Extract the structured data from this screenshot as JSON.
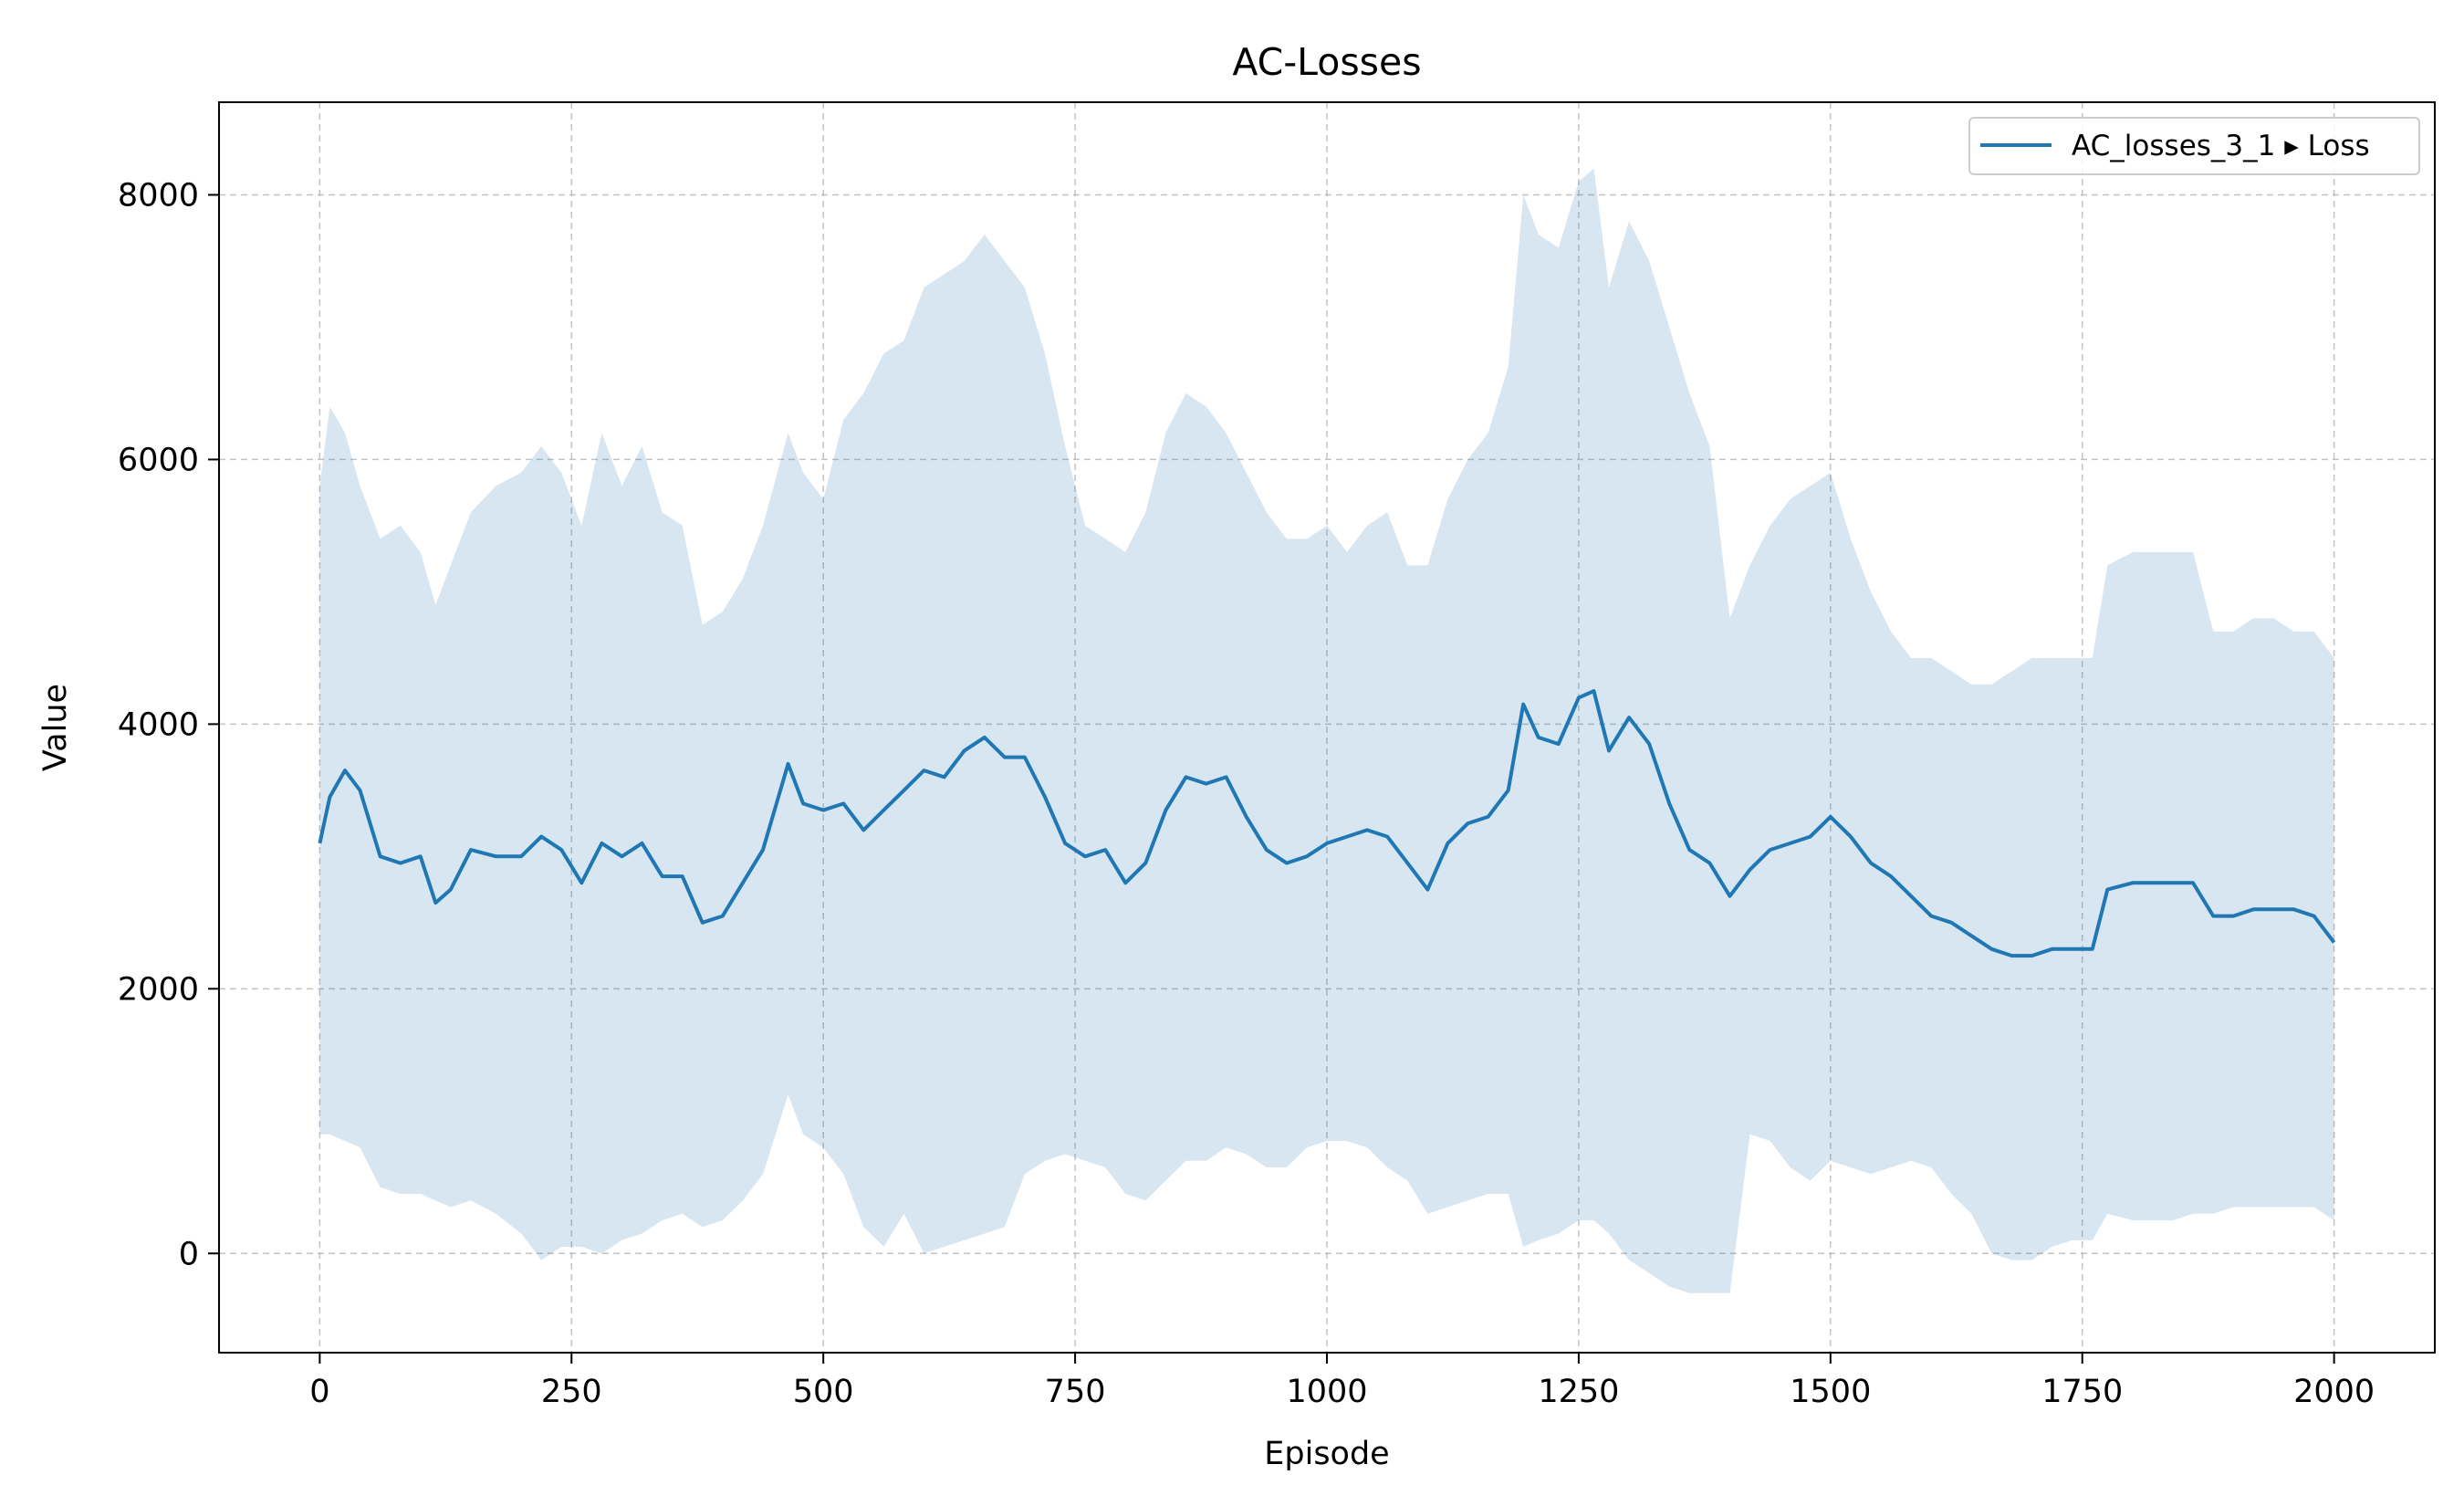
{
  "chart_data": {
    "type": "line",
    "title": "AC-Losses",
    "xlabel": "Episode",
    "ylabel": "Value",
    "xlim": [
      -100,
      2100
    ],
    "ylim": [
      -750,
      8700
    ],
    "xticks": [
      0,
      250,
      500,
      750,
      1000,
      1250,
      1500,
      1750,
      2000
    ],
    "yticks": [
      0,
      2000,
      4000,
      6000,
      8000
    ],
    "grid": true,
    "legend_position": "top-right",
    "colors": {
      "line": "#1f77b4",
      "band": "#1f77b4"
    },
    "series": [
      {
        "name": "AC_losses_3_1 ▸ Loss",
        "x": [
          0,
          10,
          25,
          40,
          60,
          80,
          100,
          115,
          130,
          150,
          175,
          200,
          220,
          240,
          260,
          280,
          300,
          320,
          340,
          360,
          380,
          400,
          420,
          440,
          465,
          480,
          500,
          520,
          540,
          560,
          580,
          600,
          620,
          640,
          660,
          680,
          700,
          720,
          740,
          760,
          780,
          800,
          820,
          840,
          860,
          880,
          900,
          920,
          940,
          960,
          980,
          1000,
          1020,
          1040,
          1060,
          1080,
          1100,
          1120,
          1140,
          1160,
          1180,
          1195,
          1210,
          1230,
          1250,
          1265,
          1280,
          1300,
          1320,
          1340,
          1360,
          1380,
          1400,
          1420,
          1440,
          1460,
          1480,
          1500,
          1520,
          1540,
          1560,
          1580,
          1600,
          1620,
          1640,
          1660,
          1680,
          1700,
          1720,
          1740,
          1760,
          1775,
          1800,
          1820,
          1840,
          1860,
          1880,
          1900,
          1920,
          1940,
          1960,
          1980,
          2000
        ],
        "mean": [
          3100,
          3450,
          3650,
          3500,
          3000,
          2950,
          3000,
          2650,
          2750,
          3050,
          3000,
          3000,
          3150,
          3050,
          2800,
          3100,
          3000,
          3100,
          2850,
          2850,
          2500,
          2550,
          2800,
          3050,
          3700,
          3400,
          3350,
          3400,
          3200,
          3350,
          3500,
          3650,
          3600,
          3800,
          3900,
          3750,
          3750,
          3450,
          3100,
          3000,
          3050,
          2800,
          2950,
          3350,
          3600,
          3550,
          3600,
          3300,
          3050,
          2950,
          3000,
          3100,
          3150,
          3200,
          3150,
          2950,
          2750,
          3100,
          3250,
          3300,
          3500,
          4150,
          3900,
          3850,
          4200,
          4250,
          3800,
          4050,
          3850,
          3400,
          3050,
          2950,
          2700,
          2900,
          3050,
          3100,
          3150,
          3300,
          3150,
          2950,
          2850,
          2700,
          2550,
          2500,
          2400,
          2300,
          2250,
          2250,
          2300,
          2300,
          2300,
          2750,
          2800,
          2800,
          2800,
          2800,
          2550,
          2550,
          2600,
          2600,
          2600,
          2550,
          2350
        ],
        "upper": [
          5800,
          6400,
          6200,
          5800,
          5400,
          5500,
          5300,
          4900,
          5200,
          5600,
          5800,
          5900,
          6100,
          5900,
          5500,
          6200,
          5800,
          6100,
          5600,
          5500,
          4750,
          4850,
          5100,
          5500,
          6200,
          5900,
          5700,
          6300,
          6500,
          6800,
          6900,
          7300,
          7400,
          7500,
          7700,
          7500,
          7300,
          6800,
          6100,
          5500,
          5400,
          5300,
          5600,
          6200,
          6500,
          6400,
          6200,
          5900,
          5600,
          5400,
          5400,
          5500,
          5300,
          5500,
          5600,
          5200,
          5200,
          5700,
          6000,
          6200,
          6700,
          8000,
          7700,
          7600,
          8100,
          8200,
          7300,
          7800,
          7500,
          7000,
          6500,
          6100,
          4800,
          5200,
          5500,
          5700,
          5800,
          5900,
          5400,
          5000,
          4700,
          4500,
          4500,
          4400,
          4300,
          4300,
          4400,
          4500,
          4500,
          4500,
          4500,
          5200,
          5300,
          5300,
          5300,
          5300,
          4700,
          4700,
          4800,
          4800,
          4700,
          4700,
          4500
        ],
        "lower": [
          900,
          900,
          850,
          800,
          500,
          450,
          450,
          400,
          350,
          400,
          300,
          150,
          -50,
          50,
          50,
          0,
          100,
          150,
          250,
          300,
          200,
          250,
          400,
          600,
          1200,
          900,
          800,
          600,
          200,
          50,
          300,
          0,
          50,
          100,
          150,
          200,
          600,
          700,
          750,
          700,
          650,
          450,
          400,
          550,
          700,
          700,
          800,
          750,
          650,
          650,
          800,
          850,
          850,
          800,
          650,
          550,
          300,
          350,
          400,
          450,
          450,
          50,
          100,
          150,
          250,
          250,
          150,
          -50,
          -150,
          -250,
          -300,
          -300,
          -300,
          900,
          850,
          650,
          550,
          700,
          650,
          600,
          650,
          700,
          650,
          450,
          300,
          0,
          -50,
          -50,
          50,
          100,
          100,
          300,
          250,
          250,
          250,
          300,
          300,
          350,
          350,
          350,
          350,
          350,
          250
        ]
      }
    ]
  }
}
